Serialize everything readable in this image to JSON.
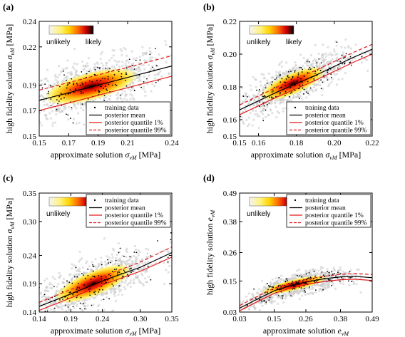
{
  "chart_data": [
    {
      "panel": "(a)",
      "type": "scatter",
      "xlabel": "approximate solution σvM [MPa]",
      "ylabel": "high fidelity solution σvM [MPa]",
      "xlim": [
        0.15,
        0.24
      ],
      "ylim": [
        0.15,
        0.24
      ],
      "xticks": [
        "0.15",
        "0.17",
        "0.19",
        "0.21",
        "0.24"
      ],
      "yticks": [
        "0.15",
        "0.17",
        "0.19",
        "0.22",
        "0.24"
      ],
      "colorbar": {
        "low": "unlikely",
        "high": "likely",
        "placement": "top-left"
      },
      "legend": {
        "placement": "bottom-right",
        "entries": [
          "training data",
          "posterior mean",
          "posterior quantile 1%",
          "posterior quantile 99%"
        ]
      },
      "series": [
        {
          "name": "posterior mean",
          "x": [
            0.15,
            0.17,
            0.19,
            0.21,
            0.24
          ],
          "y": [
            0.178,
            0.184,
            0.19,
            0.196,
            0.205
          ]
        },
        {
          "name": "posterior quantile 1%",
          "x": [
            0.15,
            0.17,
            0.19,
            0.21,
            0.24
          ],
          "y": [
            0.17,
            0.176,
            0.182,
            0.188,
            0.197
          ]
        },
        {
          "name": "posterior quantile 99%",
          "x": [
            0.15,
            0.17,
            0.19,
            0.21,
            0.24
          ],
          "y": [
            0.186,
            0.192,
            0.198,
            0.204,
            0.213
          ]
        }
      ],
      "training_cloud": {
        "center_x": 0.185,
        "center_y": 0.189,
        "spread_x": 0.025,
        "spread_y": 0.01
      }
    },
    {
      "panel": "(b)",
      "type": "scatter",
      "xlabel": "approximate solution σvM [MPa]",
      "ylabel": "high fidelity solution σvM [MPa]",
      "xlim": [
        0.15,
        0.22
      ],
      "ylim": [
        0.15,
        0.22
      ],
      "xticks": [
        "0.15",
        "0.16",
        "0.18",
        "0.20",
        "0.22"
      ],
      "yticks": [
        "0.15",
        "0.16",
        "0.18",
        "0.20",
        "0.22"
      ],
      "colorbar": {
        "low": "unlikely",
        "high": "likely",
        "placement": "top-left"
      },
      "legend": {
        "placement": "bottom-right",
        "entries": [
          "training data",
          "posterior mean",
          "posterior quantile 1%",
          "posterior quantile 99%"
        ]
      },
      "series": [
        {
          "name": "posterior mean",
          "x": [
            0.15,
            0.17,
            0.19,
            0.21,
            0.22
          ],
          "y": [
            0.166,
            0.177,
            0.187,
            0.198,
            0.203
          ]
        },
        {
          "name": "posterior quantile 1%",
          "x": [
            0.15,
            0.17,
            0.19,
            0.21,
            0.22
          ],
          "y": [
            0.163,
            0.174,
            0.184,
            0.195,
            0.2
          ]
        },
        {
          "name": "posterior quantile 99%",
          "x": [
            0.15,
            0.17,
            0.19,
            0.21,
            0.22
          ],
          "y": [
            0.169,
            0.18,
            0.19,
            0.201,
            0.206
          ]
        }
      ],
      "training_cloud": {
        "center_x": 0.178,
        "center_y": 0.182,
        "spread_x": 0.014,
        "spread_y": 0.006
      }
    },
    {
      "panel": "(c)",
      "type": "scatter",
      "xlabel": "approximate solution σvM [MPa]",
      "ylabel": "high fidelity solution σvM [MPa]",
      "xlim": [
        0.14,
        0.35
      ],
      "ylim": [
        0.14,
        0.35
      ],
      "xticks": [
        "0.14",
        "0.19",
        "0.24",
        "0.30",
        "0.35"
      ],
      "yticks": [
        "0.14",
        "0.19",
        "0.24",
        "0.30",
        "0.35"
      ],
      "colorbar": {
        "low": "unlikely",
        "high": "likely",
        "placement": "top-left"
      },
      "legend": {
        "placement": "top-right",
        "entries": [
          "training data",
          "posterior mean",
          "posterior quantile 1%",
          "posterior quantile 99%"
        ]
      },
      "series": [
        {
          "name": "posterior mean",
          "x": [
            0.14,
            0.19,
            0.24,
            0.3,
            0.35
          ],
          "y": [
            0.15,
            0.172,
            0.195,
            0.219,
            0.245
          ]
        },
        {
          "name": "posterior quantile 1%",
          "x": [
            0.14,
            0.19,
            0.24,
            0.3,
            0.35
          ],
          "y": [
            0.143,
            0.165,
            0.188,
            0.212,
            0.237
          ]
        },
        {
          "name": "posterior quantile 99%",
          "x": [
            0.14,
            0.19,
            0.24,
            0.3,
            0.35
          ],
          "y": [
            0.157,
            0.18,
            0.203,
            0.228,
            0.255
          ]
        }
      ],
      "training_cloud": {
        "center_x": 0.225,
        "center_y": 0.19,
        "spread_x": 0.05,
        "spread_y": 0.02
      }
    },
    {
      "panel": "(d)",
      "type": "scatter",
      "xlabel": "approximate solution evM",
      "ylabel": "high fidelity solution evM",
      "xlim": [
        0.03,
        0.49
      ],
      "ylim": [
        0.03,
        0.49
      ],
      "xticks": [
        "0.03",
        "0.15",
        "0.26",
        "0.38",
        "0.49"
      ],
      "yticks": [
        "0.03",
        "0.15",
        "0.26",
        "0.38",
        "0.49"
      ],
      "colorbar": {
        "low": "unlikely",
        "high": "likely",
        "placement": "top-left"
      },
      "legend": {
        "placement": "top-right",
        "entries": [
          "training data",
          "posterior mean",
          "posterior quantile 1%",
          "posterior quantile 99%"
        ]
      },
      "series": [
        {
          "name": "posterior mean",
          "x": [
            0.03,
            0.1,
            0.15,
            0.2,
            0.26,
            0.32,
            0.38,
            0.43,
            0.49
          ],
          "y": [
            0.045,
            0.085,
            0.112,
            0.13,
            0.146,
            0.158,
            0.166,
            0.168,
            0.163
          ]
        },
        {
          "name": "posterior quantile 1%",
          "x": [
            0.03,
            0.1,
            0.15,
            0.2,
            0.26,
            0.32,
            0.38,
            0.43,
            0.49
          ],
          "y": [
            0.035,
            0.075,
            0.102,
            0.12,
            0.136,
            0.148,
            0.155,
            0.157,
            0.152
          ]
        },
        {
          "name": "posterior quantile 99%",
          "x": [
            0.03,
            0.1,
            0.15,
            0.2,
            0.26,
            0.32,
            0.38,
            0.43,
            0.49
          ],
          "y": [
            0.055,
            0.095,
            0.122,
            0.14,
            0.156,
            0.168,
            0.176,
            0.179,
            0.175
          ]
        }
      ],
      "training_cloud": {
        "center_x": 0.22,
        "center_y": 0.135,
        "spread_x": 0.09,
        "spread_y": 0.02
      }
    }
  ],
  "colors": {
    "mean": "#000000",
    "quantile": "#e41a1c",
    "points": "#000000",
    "cloud": "#c8c8c8"
  }
}
